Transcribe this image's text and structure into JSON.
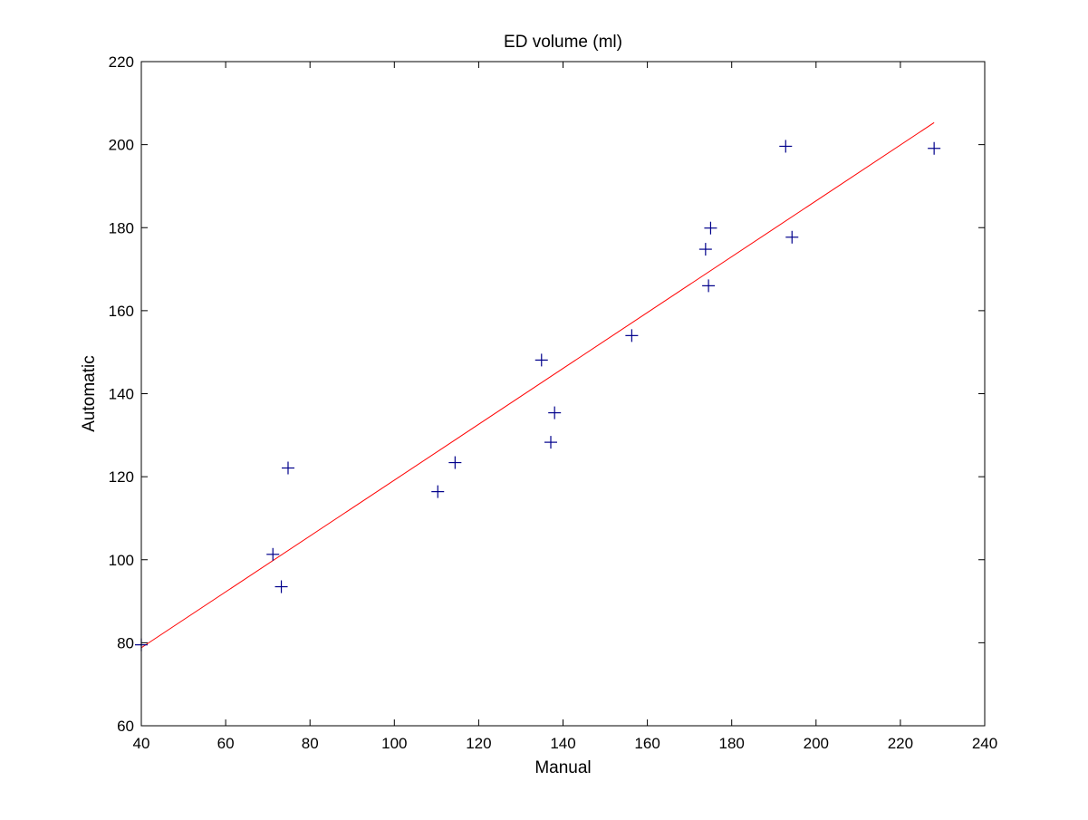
{
  "chart_data": {
    "type": "scatter",
    "title": "ED volume (ml)",
    "xlabel": "Manual",
    "ylabel": "Automatic",
    "xlim": [
      40,
      240
    ],
    "ylim": [
      60,
      220
    ],
    "xticks": [
      40,
      60,
      80,
      100,
      120,
      140,
      160,
      180,
      200,
      220,
      240
    ],
    "yticks": [
      60,
      80,
      100,
      120,
      140,
      160,
      180,
      200,
      220
    ],
    "grid": false,
    "legend": "none",
    "series": [
      {
        "marker": "plus",
        "color": "#00008b",
        "points": [
          {
            "x": 40.0,
            "y": 79.5
          },
          {
            "x": 71.2,
            "y": 101.3
          },
          {
            "x": 73.2,
            "y": 93.5
          },
          {
            "x": 74.8,
            "y": 122.1
          },
          {
            "x": 110.3,
            "y": 116.4
          },
          {
            "x": 114.4,
            "y": 123.4
          },
          {
            "x": 134.9,
            "y": 148.1
          },
          {
            "x": 137.1,
            "y": 128.3
          },
          {
            "x": 138.0,
            "y": 135.4
          },
          {
            "x": 156.3,
            "y": 154.0
          },
          {
            "x": 173.8,
            "y": 174.8
          },
          {
            "x": 174.5,
            "y": 166.0
          },
          {
            "x": 175.0,
            "y": 179.9
          },
          {
            "x": 192.8,
            "y": 199.6
          },
          {
            "x": 194.3,
            "y": 177.7
          },
          {
            "x": 228.0,
            "y": 199.1
          }
        ]
      }
    ],
    "fit_line": {
      "color": "#ff0000",
      "points": [
        {
          "x": 40.0,
          "y": 78.8
        },
        {
          "x": 228.0,
          "y": 205.3
        }
      ]
    }
  }
}
